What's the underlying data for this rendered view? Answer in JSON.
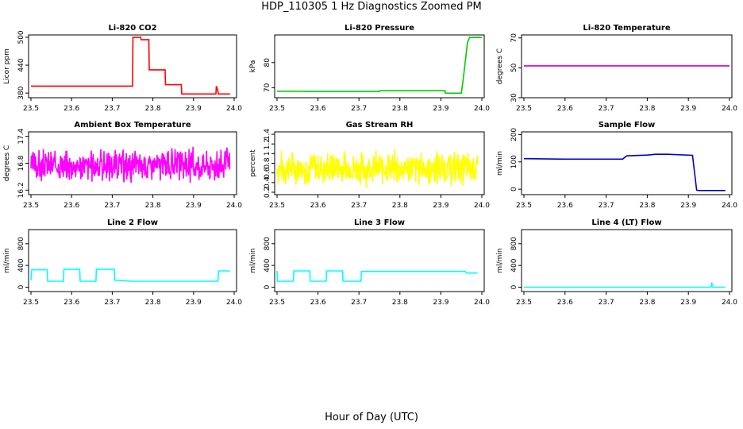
{
  "title": "HDP_110305  1 Hz Diagnostics Zoomed PM",
  "xlabel": "Hour of Day (UTC)",
  "chart_data": [
    {
      "type": "line",
      "title": "Li-820 CO2",
      "ylabel": "Licor ppm",
      "color": "#ff0000",
      "xlim": [
        23.5,
        24.0
      ],
      "ylim": [
        370,
        505
      ],
      "yticks": [
        380,
        440,
        500
      ],
      "xticks": [
        "23.5",
        "23.6",
        "23.7",
        "23.8",
        "23.9",
        "24.0"
      ],
      "series": [
        {
          "x": [
            23.5,
            23.6,
            23.75,
            23.751,
            23.77,
            23.771,
            23.79,
            23.791,
            23.82,
            23.83,
            23.831,
            23.87,
            23.871,
            23.955,
            23.956,
            23.96,
            23.961,
            23.99
          ],
          "y": [
            395,
            395,
            395,
            500,
            500,
            495,
            495,
            430,
            430,
            430,
            398,
            398,
            378,
            378,
            395,
            385,
            378,
            378
          ]
        }
      ]
    },
    {
      "type": "line",
      "title": "Li-820 Pressure",
      "ylabel": "kPa",
      "color": "#00cc00",
      "xlim": [
        23.5,
        24.0
      ],
      "ylim": [
        66,
        91
      ],
      "yticks": [
        70,
        80
      ],
      "xticks": [
        "23.5",
        "23.6",
        "23.7",
        "23.8",
        "23.9",
        "24.0"
      ],
      "series": [
        {
          "x": [
            23.5,
            23.6,
            23.75,
            23.751,
            23.9,
            23.91,
            23.911,
            23.95,
            23.955,
            23.965,
            23.97,
            23.975,
            24.0
          ],
          "y": [
            68.6,
            68.5,
            68.5,
            68.8,
            68.8,
            68.8,
            67.8,
            67.8,
            74,
            88,
            90,
            90,
            90
          ]
        }
      ]
    },
    {
      "type": "line",
      "title": "Li-820 Temperature",
      "ylabel": "degrees C",
      "color": "#cc00cc",
      "xlim": [
        23.5,
        24.0
      ],
      "ylim": [
        30,
        72
      ],
      "yticks": [
        30,
        50,
        70
      ],
      "xticks": [
        "23.5",
        "23.6",
        "23.7",
        "23.8",
        "23.9",
        "24.0"
      ],
      "series": [
        {
          "x": [
            23.5,
            24.0
          ],
          "y": [
            51.3,
            51.3
          ]
        }
      ]
    },
    {
      "type": "line",
      "title": "Ambient Box Temperature",
      "ylabel": "degrees C",
      "color": "#ff00ff",
      "xlim": [
        23.5,
        24.0
      ],
      "ylim": [
        16.1,
        17.5
      ],
      "yticks": [
        16.2,
        16.8,
        17.4
      ],
      "xticks": [
        "23.5",
        "23.6",
        "23.7",
        "23.8",
        "23.9",
        "24.0"
      ],
      "series": [
        {
          "noise": {
            "x0": 23.5,
            "x1": 23.99,
            "n": 500,
            "mean": 16.75,
            "spread": 0.35,
            "min": 16.2,
            "max": 17.4,
            "seed": 3
          }
        }
      ]
    },
    {
      "type": "line",
      "title": "Gas Stream RH",
      "ylabel": "percent",
      "color": "#ffff00",
      "xlim": [
        23.5,
        24.0
      ],
      "ylim": [
        0.15,
        1.45
      ],
      "yticks": [
        0.2,
        0.4,
        0.6,
        0.8,
        1.0,
        1.2,
        1.4
      ],
      "xticks": [
        "23.5",
        "23.6",
        "23.7",
        "23.8",
        "23.9",
        "24.0"
      ],
      "series": [
        {
          "noise": {
            "x0": 23.5,
            "x1": 23.99,
            "n": 500,
            "mean": 0.7,
            "spread": 0.35,
            "min": 0.25,
            "max": 1.38,
            "seed": 7
          }
        }
      ]
    },
    {
      "type": "line",
      "title": "Sample Flow",
      "ylabel": "ml/min",
      "color": "#0000cc",
      "xlim": [
        23.5,
        24.0
      ],
      "ylim": [
        -20,
        210
      ],
      "yticks": [
        0,
        100,
        200
      ],
      "xticks": [
        "23.5",
        "23.6",
        "23.7",
        "23.8",
        "23.9",
        "24.0"
      ],
      "series": [
        {
          "x": [
            23.5,
            23.6,
            23.7,
            23.74,
            23.75,
            23.8,
            23.82,
            23.85,
            23.91,
            23.92,
            23.925,
            23.95,
            23.99
          ],
          "y": [
            112,
            110,
            110,
            110,
            122,
            125,
            128,
            128,
            124,
            -3,
            -5,
            -5,
            -5
          ]
        }
      ]
    },
    {
      "type": "line",
      "title": "Line 2 Flow",
      "ylabel": "ml/min",
      "color": "#00ffff",
      "xlim": [
        23.5,
        24.0
      ],
      "ylim": [
        -80,
        1060
      ],
      "yticks": [
        0,
        400,
        800
      ],
      "xticks": [
        "23.5",
        "23.6",
        "23.7",
        "23.8",
        "23.9",
        "24.0"
      ],
      "series": [
        {
          "x": [
            23.5,
            23.502,
            23.54,
            23.541,
            23.58,
            23.581,
            23.62,
            23.621,
            23.66,
            23.661,
            23.705,
            23.706,
            23.75,
            23.96,
            23.962,
            23.99
          ],
          "y": [
            130,
            320,
            320,
            110,
            110,
            330,
            330,
            110,
            110,
            330,
            330,
            130,
            110,
            110,
            300,
            300
          ]
        }
      ]
    },
    {
      "type": "line",
      "title": "Line 3 Flow",
      "ylabel": "ml/min",
      "color": "#00ffff",
      "xlim": [
        23.5,
        24.0
      ],
      "ylim": [
        -80,
        1060
      ],
      "yticks": [
        0,
        400,
        800
      ],
      "xticks": [
        "23.5",
        "23.6",
        "23.7",
        "23.8",
        "23.9",
        "24.0"
      ],
      "series": [
        {
          "x": [
            23.5,
            23.501,
            23.54,
            23.541,
            23.58,
            23.581,
            23.62,
            23.621,
            23.66,
            23.661,
            23.705,
            23.706,
            23.96,
            23.962,
            23.99
          ],
          "y": [
            300,
            110,
            110,
            300,
            300,
            110,
            110,
            300,
            300,
            110,
            110,
            290,
            290,
            260,
            260
          ]
        }
      ]
    },
    {
      "type": "line",
      "title": "Line 4 (LT) Flow",
      "ylabel": "ml/min",
      "color": "#00ffff",
      "xlim": [
        23.5,
        24.0
      ],
      "ylim": [
        -80,
        1060
      ],
      "yticks": [
        0,
        400,
        800
      ],
      "xticks": [
        "23.5",
        "23.6",
        "23.7",
        "23.8",
        "23.9",
        "24.0"
      ],
      "series": [
        {
          "x": [
            23.5,
            23.955,
            23.957,
            23.958,
            23.96,
            23.99
          ],
          "y": [
            0,
            0,
            90,
            10,
            0,
            0
          ]
        }
      ]
    }
  ]
}
